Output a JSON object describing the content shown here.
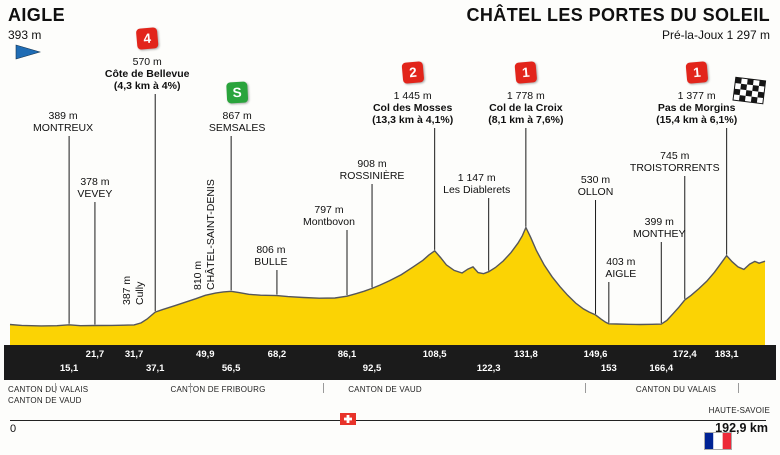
{
  "header": {
    "start_name": "AIGLE",
    "start_elevation": "393 m",
    "finish_name": "CHÂTEL LES PORTES DU SOLEIL",
    "finish_subtitle": "Pré-la-Joux 1 297 m"
  },
  "footer": {
    "start_label": "0",
    "end_label": "192,9 km"
  },
  "regions": [
    {
      "label": "CANTON DU VALAIS"
    },
    {
      "label": "CANTON DE VAUD"
    },
    {
      "label": "CANTON DE FRIBOURG"
    },
    {
      "label": "CANTON DE VAUD"
    },
    {
      "label": "CANTON DU VALAIS"
    },
    {
      "label": "HAUTE-SAVOIE"
    }
  ],
  "icons": {
    "start": "blue-pennant-flag",
    "finish": "checkered-flag",
    "mid_country": "switzerland-flag",
    "end_country": "france-flag"
  },
  "colors": {
    "profile_yellow": "#fbd304",
    "profile_outline": "#55565a",
    "climb_red": "#e2251b",
    "sprint_green": "#2aa43c",
    "band_black": "#1b1b1b",
    "flag_blue": "#1f6cb4"
  },
  "chart_data": {
    "type": "area",
    "title": "Stage elevation profile Aigle → Châtel Les Portes du Soleil",
    "x_unit": "km",
    "y_unit": "m",
    "x_range": [
      0,
      192.9
    ],
    "profile": [
      [
        0,
        393
      ],
      [
        3,
        380
      ],
      [
        8,
        373
      ],
      [
        12,
        376
      ],
      [
        15.1,
        389
      ],
      [
        18,
        376
      ],
      [
        21.7,
        378
      ],
      [
        26,
        380
      ],
      [
        29,
        383
      ],
      [
        31.7,
        387
      ],
      [
        33.5,
        415
      ],
      [
        35,
        470
      ],
      [
        37.1,
        570
      ],
      [
        39,
        605
      ],
      [
        42,
        660
      ],
      [
        45,
        715
      ],
      [
        47.5,
        762
      ],
      [
        49.9,
        810
      ],
      [
        52.5,
        842
      ],
      [
        54.5,
        858
      ],
      [
        56.5,
        867
      ],
      [
        58.5,
        848
      ],
      [
        61,
        825
      ],
      [
        64,
        812
      ],
      [
        68.2,
        806
      ],
      [
        71,
        792
      ],
      [
        75,
        778
      ],
      [
        79,
        768
      ],
      [
        83,
        772
      ],
      [
        86.1,
        797
      ],
      [
        88.5,
        835
      ],
      [
        90.5,
        868
      ],
      [
        92.5,
        908
      ],
      [
        94.5,
        955
      ],
      [
        97,
        1020
      ],
      [
        100,
        1105
      ],
      [
        103,
        1215
      ],
      [
        105.5,
        1310
      ],
      [
        107,
        1385
      ],
      [
        108.5,
        1445
      ],
      [
        110,
        1350
      ],
      [
        111.5,
        1245
      ],
      [
        113.5,
        1165
      ],
      [
        115.5,
        1128
      ],
      [
        117,
        1185
      ],
      [
        118.3,
        1215
      ],
      [
        119.6,
        1135
      ],
      [
        121,
        1118
      ],
      [
        122.3,
        1147
      ],
      [
        124,
        1205
      ],
      [
        126,
        1300
      ],
      [
        128,
        1420
      ],
      [
        129.8,
        1555
      ],
      [
        130.9,
        1660
      ],
      [
        131.8,
        1778
      ],
      [
        133,
        1640
      ],
      [
        134.5,
        1450
      ],
      [
        136.5,
        1240
      ],
      [
        138.5,
        1075
      ],
      [
        140.5,
        935
      ],
      [
        142.5,
        810
      ],
      [
        144.5,
        700
      ],
      [
        146.5,
        615
      ],
      [
        148,
        570
      ],
      [
        149.6,
        530
      ],
      [
        151,
        470
      ],
      [
        152.2,
        425
      ],
      [
        153,
        403
      ],
      [
        155,
        400
      ],
      [
        158,
        396
      ],
      [
        161,
        393
      ],
      [
        164,
        396
      ],
      [
        166.4,
        399
      ],
      [
        167.8,
        450
      ],
      [
        169.3,
        540
      ],
      [
        170.9,
        640
      ],
      [
        172.4,
        745
      ],
      [
        174,
        808
      ],
      [
        176,
        905
      ],
      [
        178,
        1010
      ],
      [
        180,
        1140
      ],
      [
        181.7,
        1270
      ],
      [
        183.1,
        1377
      ],
      [
        184.5,
        1290
      ],
      [
        186,
        1215
      ],
      [
        187.5,
        1180
      ],
      [
        189,
        1255
      ],
      [
        190.3,
        1295
      ],
      [
        191.4,
        1268
      ],
      [
        192.9,
        1297
      ]
    ],
    "waypoints": [
      {
        "id": "montreux",
        "name": "MONTREUX",
        "elevation_label": "389 m",
        "km": 15.1,
        "elev": 389
      },
      {
        "id": "vevey",
        "name": "VEVEY",
        "elevation_label": "378 m",
        "km": 21.7,
        "elev": 378
      },
      {
        "id": "cully",
        "name": "Cully",
        "elevation_label": "387 m",
        "km": 31.7,
        "elev": 387
      },
      {
        "id": "cote-de-bellevue",
        "name": "Côte de Bellevue",
        "elevation_label": "570 m",
        "stats": "(4,3 km à 4%)",
        "marker": "4",
        "marker_type": "category",
        "km": 37.1,
        "elev": 570
      },
      {
        "id": "chatel-saint-denis",
        "name": "CHÂTEL-SAINT-DENIS",
        "elevation_label": "810 m",
        "km": 49.9,
        "elev": 810
      },
      {
        "id": "semsales",
        "name": "SEMSALES",
        "elevation_label": "867 m",
        "marker": "S",
        "marker_type": "sprint",
        "km": 56.5,
        "elev": 867
      },
      {
        "id": "bulle",
        "name": "BULLE",
        "elevation_label": "806 m",
        "km": 68.2,
        "elev": 806
      },
      {
        "id": "montbovon",
        "name": "Montbovon",
        "elevation_label": "797 m",
        "km": 86.1,
        "elev": 797
      },
      {
        "id": "rossiniere",
        "name": "ROSSINIÈRE",
        "elevation_label": "908 m",
        "km": 92.5,
        "elev": 908
      },
      {
        "id": "col-des-mosses",
        "name": "Col des Mosses",
        "elevation_label": "1 445 m",
        "stats": "(13,3 km à 4,1%)",
        "marker": "2",
        "marker_type": "category",
        "km": 108.5,
        "elev": 1445
      },
      {
        "id": "les-diablerets",
        "name": "Les Diablerets",
        "elevation_label": "1 147 m",
        "km": 122.3,
        "elev": 1147
      },
      {
        "id": "col-de-la-croix",
        "name": "Col de la Croix",
        "elevation_label": "1 778 m",
        "stats": "(8,1 km à 7,6%)",
        "marker": "1",
        "marker_type": "category",
        "km": 131.8,
        "elev": 1778
      },
      {
        "id": "ollon",
        "name": "OLLON",
        "elevation_label": "530 m",
        "km": 149.6,
        "elev": 530
      },
      {
        "id": "aigle",
        "name": "AIGLE",
        "elevation_label": "403 m",
        "km": 153,
        "elev": 403
      },
      {
        "id": "monthey",
        "name": "MONTHEY",
        "elevation_label": "399 m",
        "km": 166.4,
        "elev": 399
      },
      {
        "id": "troistorrents",
        "name": "TROISTORRENTS",
        "elevation_label": "745 m",
        "km": 172.4,
        "elev": 745
      },
      {
        "id": "pas-de-morgins",
        "name": "Pas de Morgins",
        "elevation_label": "1 377 m",
        "stats": "(15,4 km à 6,1%)",
        "marker": "1",
        "marker_type": "category",
        "km": 183.1,
        "elev": 1377
      }
    ],
    "distance_markers": [
      {
        "label": "15,1",
        "km": 15.1,
        "row": 2
      },
      {
        "label": "21,7",
        "km": 21.7,
        "row": 1
      },
      {
        "label": "31,7",
        "km": 31.7,
        "row": 1
      },
      {
        "label": "37,1",
        "km": 37.1,
        "row": 2
      },
      {
        "label": "49,9",
        "km": 49.9,
        "row": 1
      },
      {
        "label": "56,5",
        "km": 56.5,
        "row": 2
      },
      {
        "label": "68,2",
        "km": 68.2,
        "row": 1
      },
      {
        "label": "86,1",
        "km": 86.1,
        "row": 1
      },
      {
        "label": "92,5",
        "km": 92.5,
        "row": 2
      },
      {
        "label": "108,5",
        "km": 108.5,
        "row": 1
      },
      {
        "label": "122,3",
        "km": 122.3,
        "row": 2
      },
      {
        "label": "131,8",
        "km": 131.8,
        "row": 1
      },
      {
        "label": "149,6",
        "km": 149.6,
        "row": 1
      },
      {
        "label": "153",
        "km": 153,
        "row": 2
      },
      {
        "label": "166,4",
        "km": 166.4,
        "row": 2
      },
      {
        "label": "172,4",
        "km": 172.4,
        "row": 1
      },
      {
        "label": "183,1",
        "km": 183.1,
        "row": 1
      }
    ]
  }
}
